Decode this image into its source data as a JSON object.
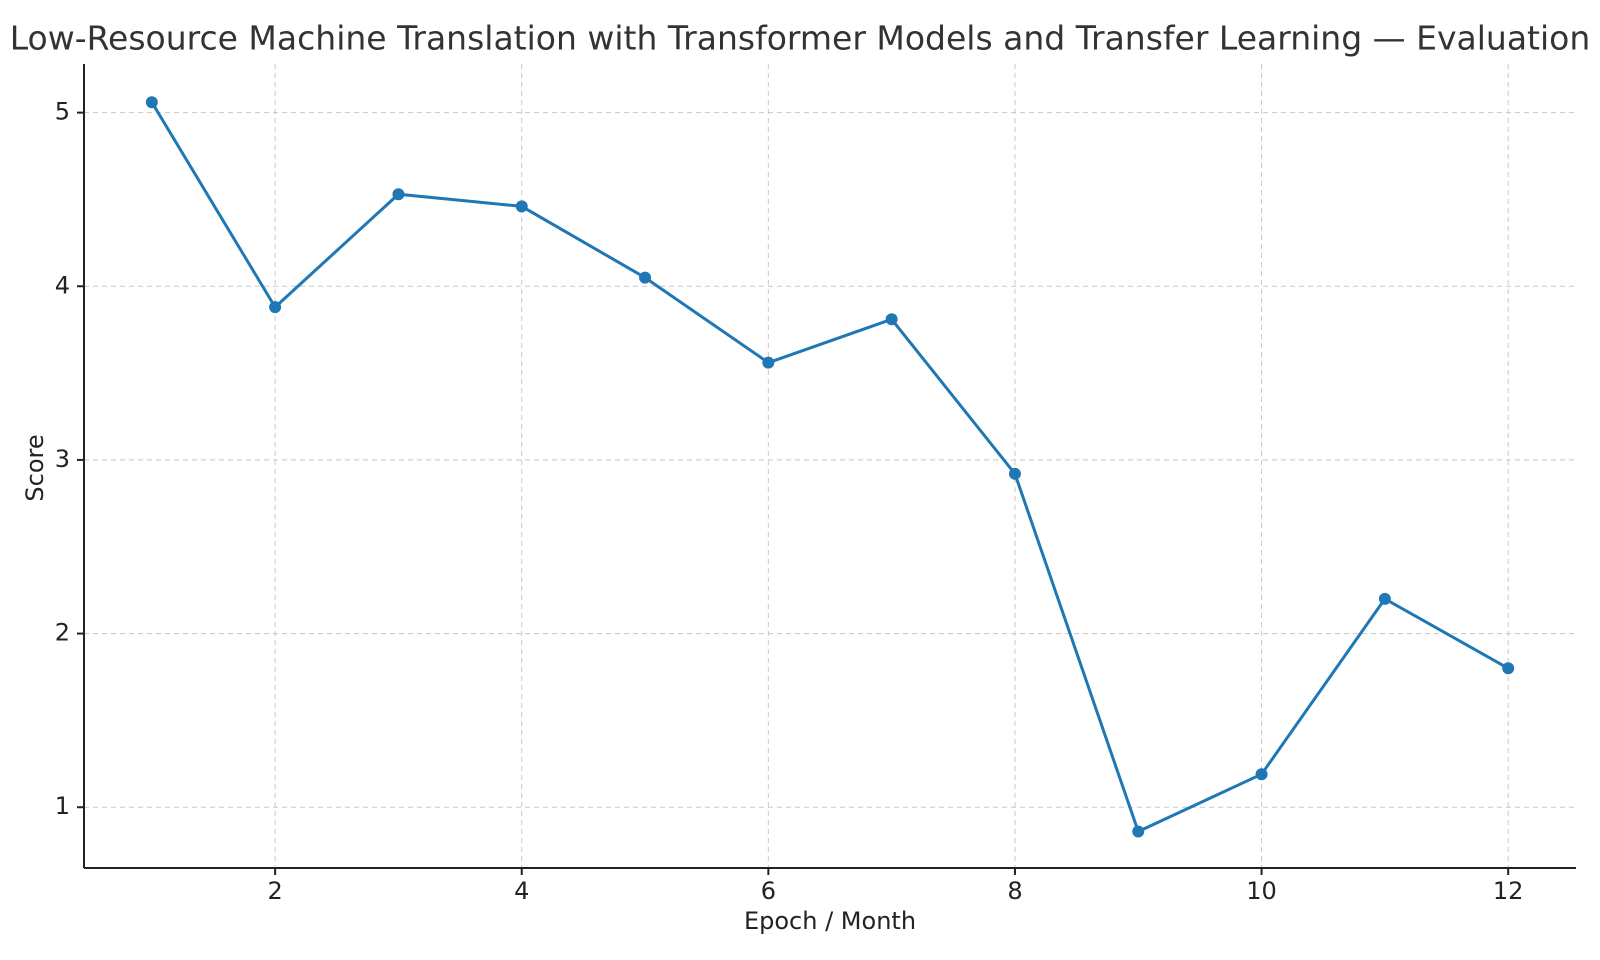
{
  "chart_data": {
    "type": "line",
    "title": "Low-Resource Machine Translation with Transformer Models and Transfer Learning — Evaluation",
    "x_label": "Epoch / Month",
    "y_label": "Score",
    "x": [
      1,
      2,
      3,
      4,
      5,
      6,
      7,
      8,
      9,
      10,
      11,
      12
    ],
    "series": [
      {
        "name": "Score",
        "color": "#1f77b4",
        "values": [
          5.06,
          3.88,
          4.53,
          4.46,
          4.05,
          3.56,
          3.81,
          2.92,
          0.86,
          1.19,
          2.2,
          1.8
        ]
      }
    ],
    "xlim": [
      0.45,
      12.55
    ],
    "ylim": [
      0.65,
      5.28
    ],
    "xticks": [
      2,
      4,
      6,
      8,
      10,
      12
    ],
    "yticks": [
      1,
      2,
      3,
      4,
      5
    ],
    "grid": true
  }
}
